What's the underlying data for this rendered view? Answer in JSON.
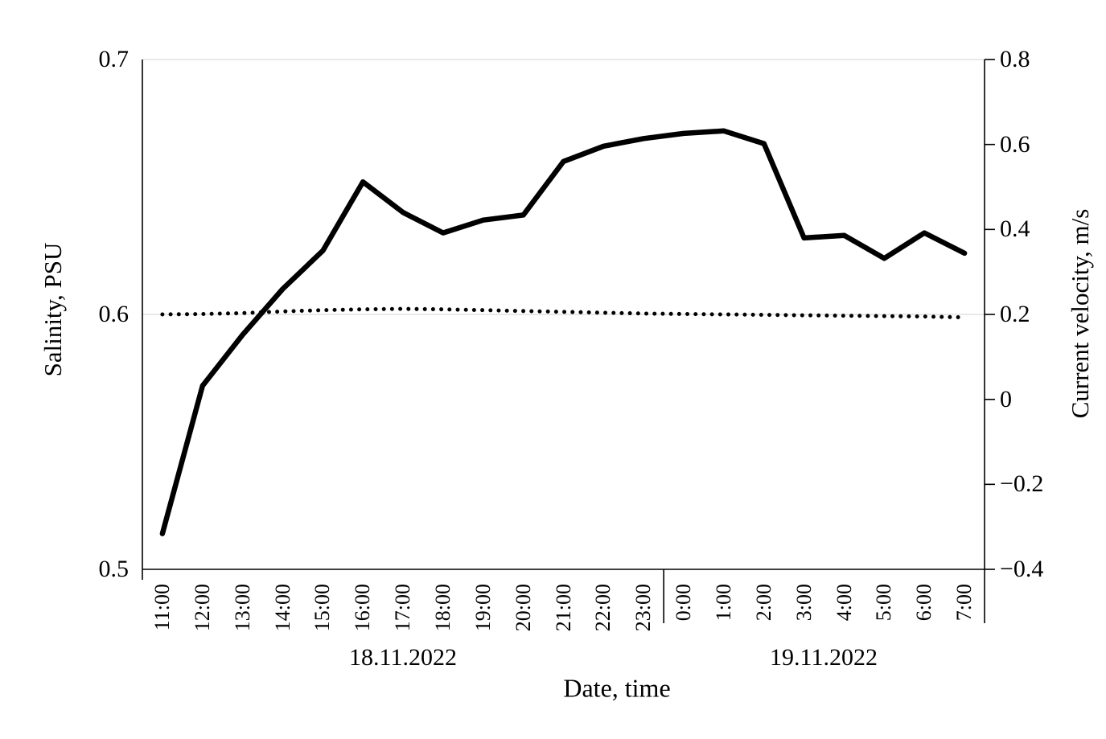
{
  "chart_data": {
    "type": "line",
    "title": "",
    "x_axis": {
      "title": "Date, time",
      "categories": [
        "11:00",
        "12:00",
        "13:00",
        "14:00",
        "15:00",
        "16:00",
        "17:00",
        "18:00",
        "19:00",
        "20:00",
        "21:00",
        "22:00",
        "23:00",
        "0:00",
        "1:00",
        "2:00",
        "3:00",
        "4:00",
        "5:00",
        "6:00",
        "7:00"
      ],
      "groups": [
        {
          "label": "18.11.2022",
          "count": 13
        },
        {
          "label": "19.11.2022",
          "count": 8
        }
      ]
    },
    "left_axis": {
      "title": "Salinity, PSU",
      "min": 0.5,
      "max": 0.7,
      "ticks": [
        {
          "label": "0.7",
          "value": 0.7
        },
        {
          "label": "0.6",
          "value": 0.6
        },
        {
          "label": "0.5",
          "value": 0.5
        }
      ],
      "gridline_values": [
        0.7,
        0.6
      ]
    },
    "right_axis": {
      "title": "Current velocity, m/s",
      "min": -0.4,
      "max": 0.8,
      "ticks": [
        {
          "label": "0.8",
          "value": 0.8
        },
        {
          "label": "0.6",
          "value": 0.6
        },
        {
          "label": "0.4",
          "value": 0.4
        },
        {
          "label": "0.2",
          "value": 0.2
        },
        {
          "label": "0",
          "value": 0.0
        },
        {
          "label": "−0.2",
          "value": -0.2
        },
        {
          "label": "−0.4",
          "value": -0.4
        }
      ]
    },
    "series": [
      {
        "name": "Salinity",
        "axis": "left",
        "style": "solid",
        "values": [
          0.514,
          0.572,
          0.592,
          0.61,
          0.625,
          0.652,
          0.64,
          0.632,
          0.637,
          0.639,
          0.66,
          0.666,
          0.669,
          0.671,
          0.672,
          0.667,
          0.63,
          0.631,
          0.622,
          0.632,
          0.624
        ]
      },
      {
        "name": "Current velocity",
        "axis": "right",
        "style": "dotted",
        "values": [
          0.2,
          0.201,
          0.203,
          0.207,
          0.21,
          0.212,
          0.213,
          0.212,
          0.21,
          0.208,
          0.206,
          0.204,
          0.202,
          0.201,
          0.2,
          0.199,
          0.198,
          0.197,
          0.196,
          0.195,
          0.193
        ]
      }
    ],
    "legend": "none",
    "grid": "horizontal-major-left-axis",
    "colors": {
      "line": "#000000",
      "grid": "#d9d9d9",
      "background": "#ffffff",
      "text": "#000000"
    }
  }
}
